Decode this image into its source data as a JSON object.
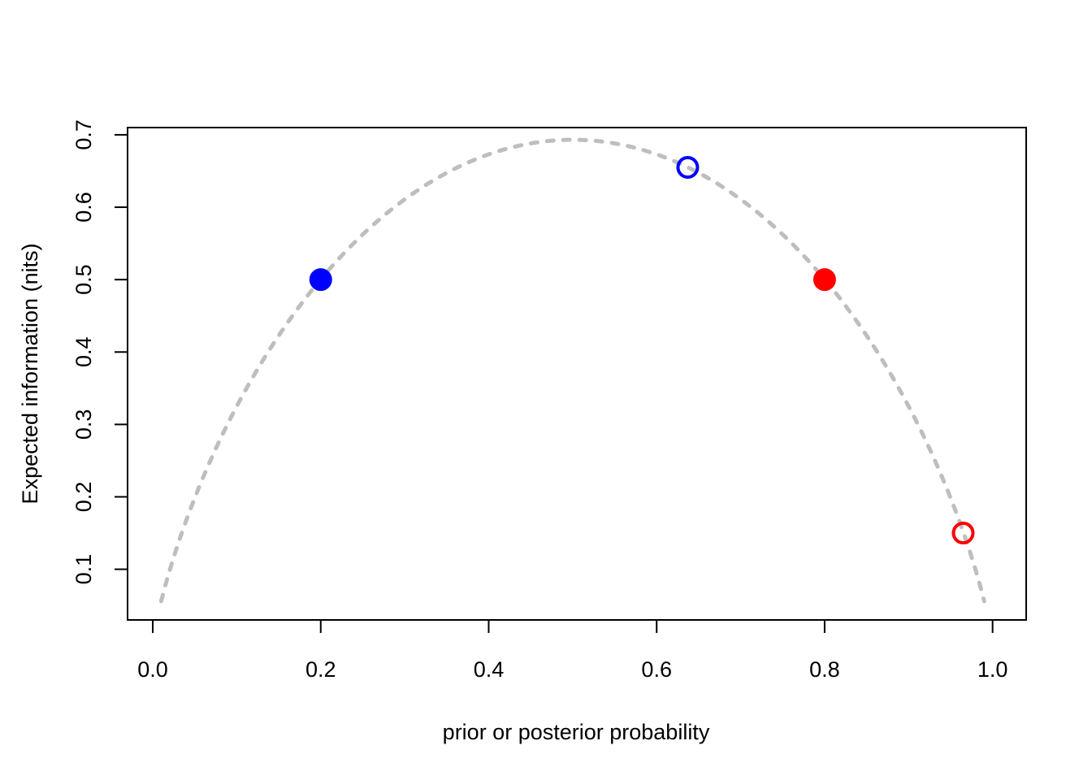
{
  "chart_data": {
    "type": "scatter",
    "title": "",
    "xlabel": "prior or posterior probability",
    "ylabel": "Expected information (nits)",
    "xlim": [
      -0.03,
      1.04
    ],
    "ylim": [
      0.03,
      0.71
    ],
    "x_ticks": [
      0.0,
      0.2,
      0.4,
      0.6,
      0.8,
      1.0
    ],
    "y_ticks": [
      0.1,
      0.2,
      0.3,
      0.4,
      0.5,
      0.6,
      0.7
    ],
    "x_tick_labels": [
      "0.0",
      "0.2",
      "0.4",
      "0.6",
      "0.8",
      "1.0"
    ],
    "y_tick_labels": [
      "0.1",
      "0.2",
      "0.3",
      "0.4",
      "0.5",
      "0.6",
      "0.7"
    ],
    "grid": false,
    "curve": {
      "function": "binary-entropy-nats",
      "x_range": [
        0.01,
        0.99
      ],
      "color": "#bebebe",
      "style": "dotted"
    },
    "points": [
      {
        "x": 0.2,
        "y": 0.5,
        "color": "#0000ff",
        "filled": true
      },
      {
        "x": 0.637,
        "y": 0.655,
        "color": "#0000ff",
        "filled": false
      },
      {
        "x": 0.8,
        "y": 0.5,
        "color": "#ff0000",
        "filled": true
      },
      {
        "x": 0.965,
        "y": 0.15,
        "color": "#ff0000",
        "filled": false
      }
    ]
  }
}
